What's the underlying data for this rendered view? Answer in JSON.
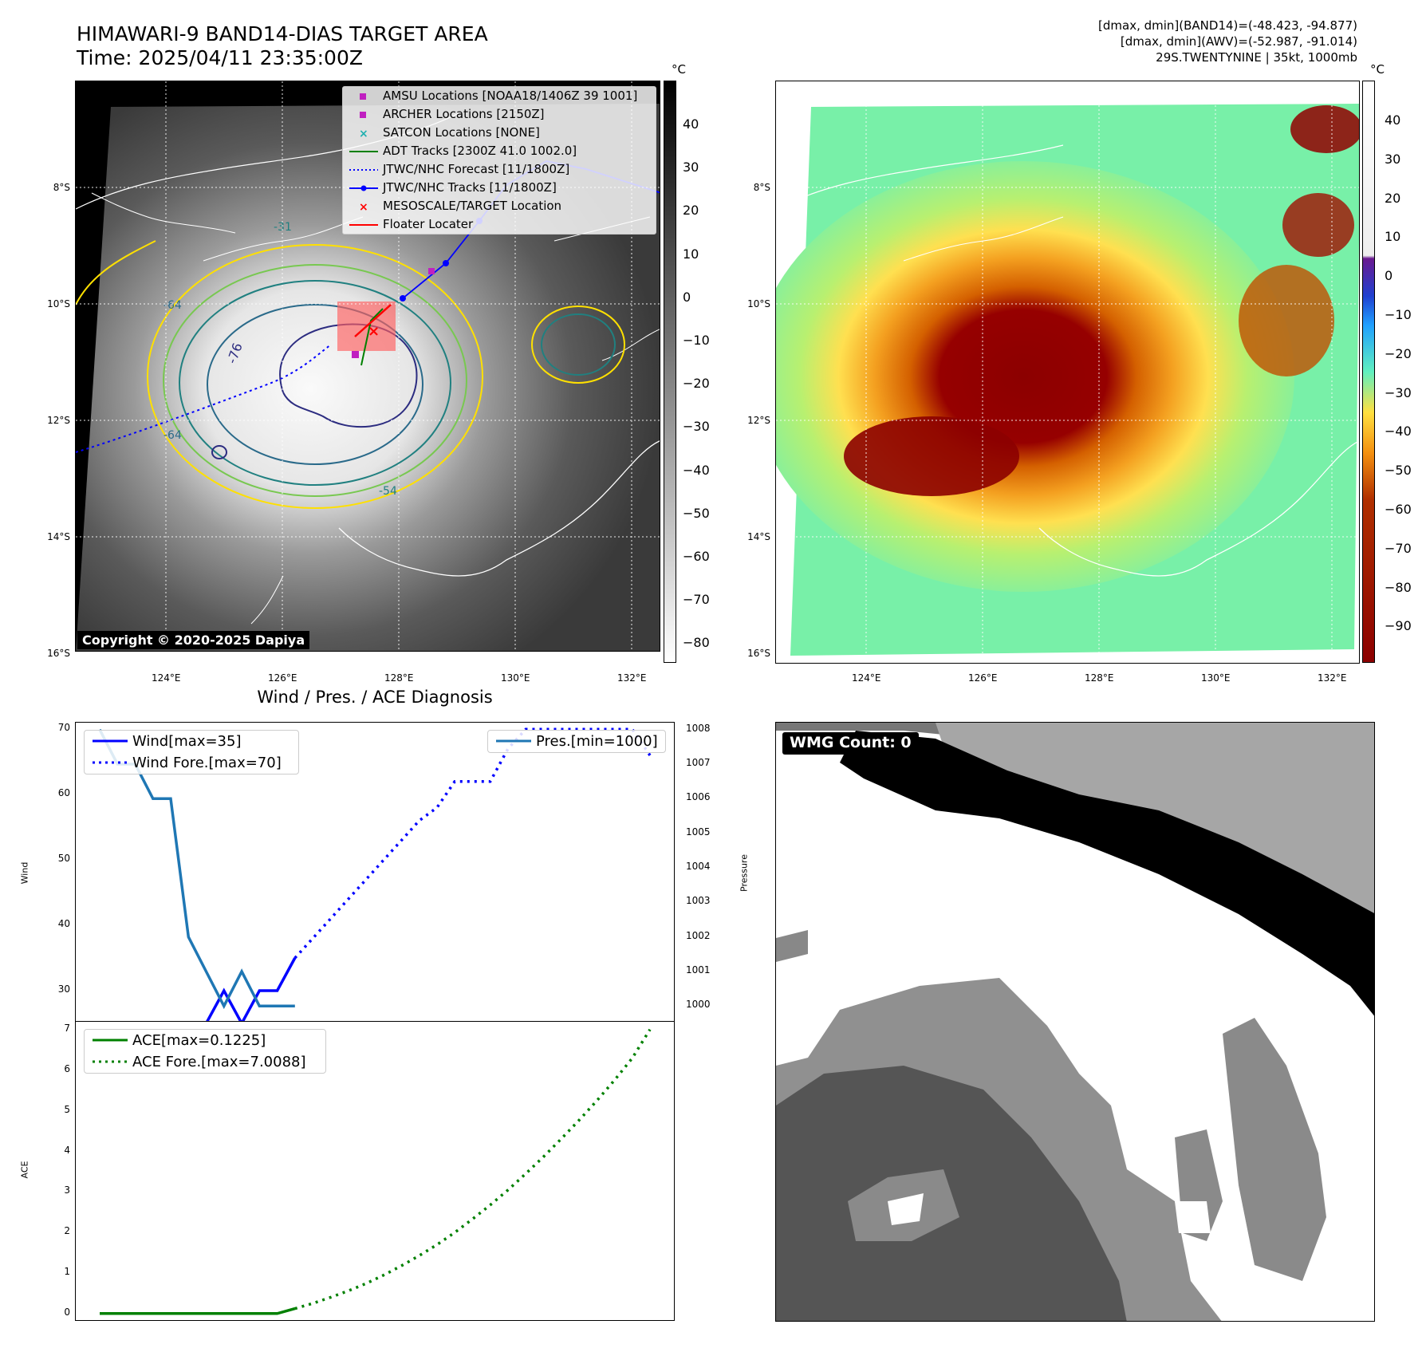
{
  "header": {
    "title_line1": "HIMAWARI-9 BAND14-DIAS TARGET AREA",
    "title_line2": "Time: 2025/04/11 23:35:00Z",
    "info_line1": "[dmax, dmin](BAND14)=(-48.423, -94.877)",
    "info_line2": "[dmax, dmin](AWV)=(-52.987, -91.014)",
    "info_line3": "29S.TWENTYNINE | 35kt, 1000mb"
  },
  "map_axes": {
    "lat_labels": [
      "8°S",
      "10°S",
      "12°S",
      "14°S",
      "16°S"
    ],
    "lon_labels": [
      "124°E",
      "126°E",
      "128°E",
      "130°E",
      "132°E"
    ]
  },
  "ir_panel": {
    "colorbar_unit": "°C",
    "colorbar_ticks": [
      "40",
      "30",
      "20",
      "10",
      "0",
      "−10",
      "−20",
      "−30",
      "−40",
      "−50",
      "−60",
      "−70",
      "−80"
    ],
    "contour_labels": [
      "-31",
      "-64",
      "-76",
      "-64",
      "-54"
    ],
    "copyright": "Copyright © 2020-2025 Dapiya",
    "legend": [
      {
        "label": "AMSU Locations [NOAA18/1406Z 39 1001]",
        "marker": "square",
        "color": "#c020c0"
      },
      {
        "label": "ARCHER Locations [2150Z]",
        "marker": "square",
        "color": "#c020c0"
      },
      {
        "label": "SATCON Locations [NONE]",
        "marker": "x",
        "color": "#20b0b0"
      },
      {
        "label": "ADT Tracks [2300Z 41.0 1002.0]",
        "marker": "line",
        "color": "#008000"
      },
      {
        "label": "JTWC/NHC Forecast [11/1800Z]",
        "marker": "dotted",
        "color": "#0000ff"
      },
      {
        "label": "JTWC/NHC Tracks [11/1800Z]",
        "marker": "line-dot",
        "color": "#0000ff"
      },
      {
        "label": "MESOSCALE/TARGET Location",
        "marker": "x",
        "color": "#ff0000"
      },
      {
        "label": "Floater Locater",
        "marker": "line",
        "color": "#ff0000"
      }
    ]
  },
  "awv_panel": {
    "colorbar_unit": "°C",
    "colorbar_ticks": [
      "40",
      "30",
      "20",
      "10",
      "0",
      "−10",
      "−20",
      "−30",
      "−40",
      "−50",
      "−60",
      "−70",
      "−80",
      "−90"
    ]
  },
  "wmg_panel": {
    "label": "WMG Count: 0"
  },
  "chart_data": [
    {
      "type": "line",
      "title": "Wind / Pres. / ACE Diagnosis",
      "ylabel": "Wind",
      "ylabel_right": "Pressure",
      "ylim": [
        25,
        71
      ],
      "ylim_right": [
        999.5,
        1008.2
      ],
      "yticks": [
        30,
        40,
        50,
        60,
        70
      ],
      "yticks_right": [
        1000,
        1001,
        1002,
        1003,
        1004,
        1005,
        1006,
        1007,
        1008
      ],
      "series": [
        {
          "name": "Wind[max=35]",
          "style": "solid",
          "color": "#0000ff",
          "axis": "left",
          "x": [
            0,
            1,
            2,
            3,
            4,
            5,
            6,
            7,
            8,
            9,
            10,
            11
          ],
          "values": [
            25,
            25,
            25,
            25,
            25,
            25,
            25,
            30,
            25,
            30,
            30,
            35
          ]
        },
        {
          "name": "Wind Fore.[max=70]",
          "style": "dotted",
          "color": "#0000ff",
          "axis": "left",
          "x": [
            11,
            12,
            13,
            14,
            15,
            16,
            17,
            18,
            19,
            20,
            21,
            22,
            23,
            24,
            25,
            26,
            27,
            28,
            29,
            30,
            31
          ],
          "values": [
            35,
            38,
            41,
            44,
            47,
            50,
            53,
            56,
            58,
            62,
            62,
            62,
            67,
            70,
            70,
            70,
            70,
            70,
            70,
            70,
            66
          ]
        },
        {
          "name": "Pres.[min=1000]",
          "style": "solid",
          "color": "#1f77b4",
          "axis": "right",
          "x": [
            0,
            1,
            2,
            3,
            4,
            5,
            6,
            7,
            8,
            9,
            10,
            11
          ],
          "values": [
            1008,
            1007,
            1007,
            1006,
            1006,
            1002,
            1001,
            1000,
            1001,
            1000,
            1000,
            1000
          ]
        }
      ]
    },
    {
      "type": "line",
      "ylabel": "ACE",
      "ylim": [
        -0.2,
        7.2
      ],
      "yticks": [
        0,
        1,
        2,
        3,
        4,
        5,
        6,
        7
      ],
      "series": [
        {
          "name": "ACE[max=0.1225]",
          "style": "solid",
          "color": "#008000",
          "x": [
            0,
            1,
            2,
            3,
            4,
            5,
            6,
            7,
            8,
            9,
            10,
            11
          ],
          "values": [
            0,
            0,
            0,
            0,
            0,
            0,
            0,
            0,
            0,
            0,
            0,
            0.1225
          ]
        },
        {
          "name": "ACE Fore.[max=7.0088]",
          "style": "dotted",
          "color": "#008000",
          "x": [
            11,
            12,
            13,
            14,
            15,
            16,
            17,
            18,
            19,
            20,
            21,
            22,
            23,
            24,
            25,
            26,
            27,
            28,
            29,
            30,
            31
          ],
          "values": [
            0.1225,
            0.25,
            0.4,
            0.56,
            0.74,
            0.95,
            1.18,
            1.43,
            1.7,
            2.0,
            2.33,
            2.68,
            3.05,
            3.45,
            3.87,
            4.31,
            4.77,
            5.25,
            5.76,
            6.3,
            7.0088
          ]
        }
      ]
    }
  ]
}
